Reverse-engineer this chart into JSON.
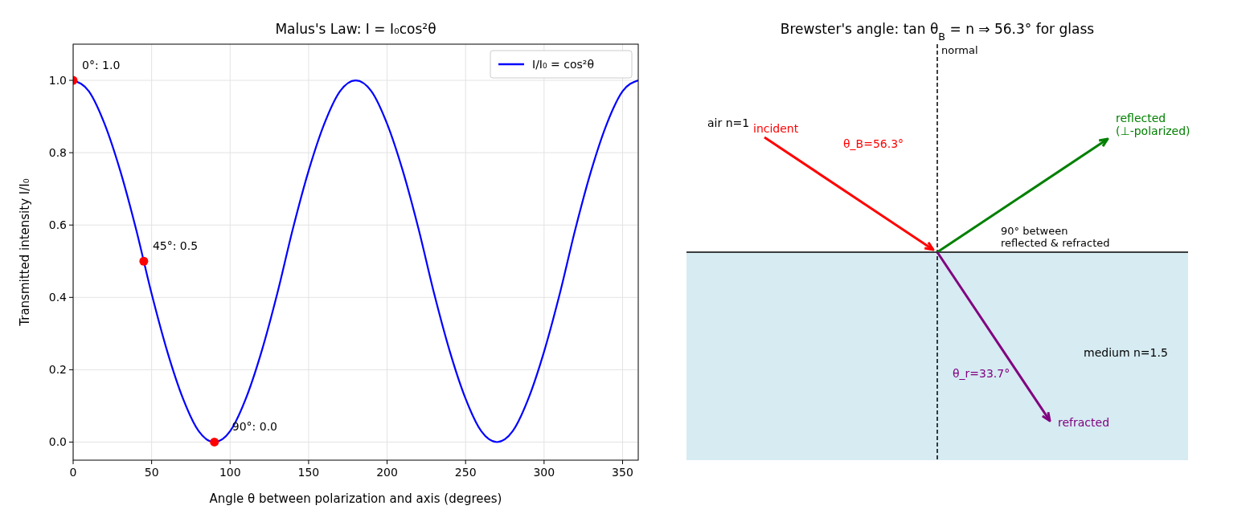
{
  "chart_data": [
    {
      "type": "line",
      "title": "Malus's Law:  I = I₀cos²θ",
      "xlabel": "Angle θ between polarization and axis (degrees)",
      "ylabel": "Transmitted intensity  I/I₀",
      "x": [
        0,
        10,
        20,
        30,
        40,
        50,
        60,
        70,
        80,
        90,
        100,
        110,
        120,
        130,
        140,
        150,
        160,
        170,
        180,
        190,
        200,
        210,
        220,
        230,
        240,
        250,
        260,
        270,
        280,
        290,
        300,
        310,
        320,
        330,
        340,
        350,
        360
      ],
      "series": [
        {
          "name": "I/I₀ = cos²θ",
          "color": "#0000ff",
          "values": [
            1,
            0.97,
            0.88,
            0.75,
            0.59,
            0.41,
            0.25,
            0.12,
            0.03,
            0,
            0.03,
            0.12,
            0.25,
            0.41,
            0.59,
            0.75,
            0.88,
            0.97,
            1,
            0.97,
            0.88,
            0.75,
            0.59,
            0.41,
            0.25,
            0.12,
            0.03,
            0,
            0.03,
            0.12,
            0.25,
            0.41,
            0.59,
            0.75,
            0.88,
            0.97,
            1
          ]
        },
        {
          "type": "scatter",
          "color": "#ff0000",
          "x": [
            0,
            45,
            90
          ],
          "values": [
            1,
            0.5,
            0
          ],
          "marker": "circle"
        }
      ],
      "xlim": [
        0,
        360
      ],
      "ylim": [
        -0.05,
        1.1
      ],
      "xticks": [
        0,
        50,
        100,
        150,
        200,
        250,
        300,
        350
      ],
      "yticks": [
        {
          "value": 0,
          "label": "0.0"
        },
        {
          "value": 0.2,
          "label": "0.2"
        },
        {
          "value": 0.4,
          "label": "0.4"
        },
        {
          "value": 0.6,
          "label": "0.6"
        },
        {
          "value": 0.8,
          "label": "0.8"
        },
        {
          "value": 1,
          "label": "1.0"
        }
      ],
      "grid": true,
      "legend": "top right",
      "annotations": [
        {
          "text": "0°: 1.0",
          "x": 0,
          "y": 1
        },
        {
          "text": "45°: 0.5",
          "x": 45,
          "y": 0.5
        },
        {
          "text": "90°: 0.0",
          "x": 90,
          "y": 0
        }
      ]
    },
    {
      "type": "other",
      "title": "Brewster's angle: tan θ$_{B}$ = n  ⇒  56.3° for glass",
      "annotations": [
        "normal",
        "air n=1",
        "incident",
        "θ_B=56.3°",
        "reflected\n(⊥-polarized)",
        "90° between\nreflected & refracted",
        "medium n=1.5",
        "θ_r=33.7°",
        "refracted"
      ]
    }
  ]
}
